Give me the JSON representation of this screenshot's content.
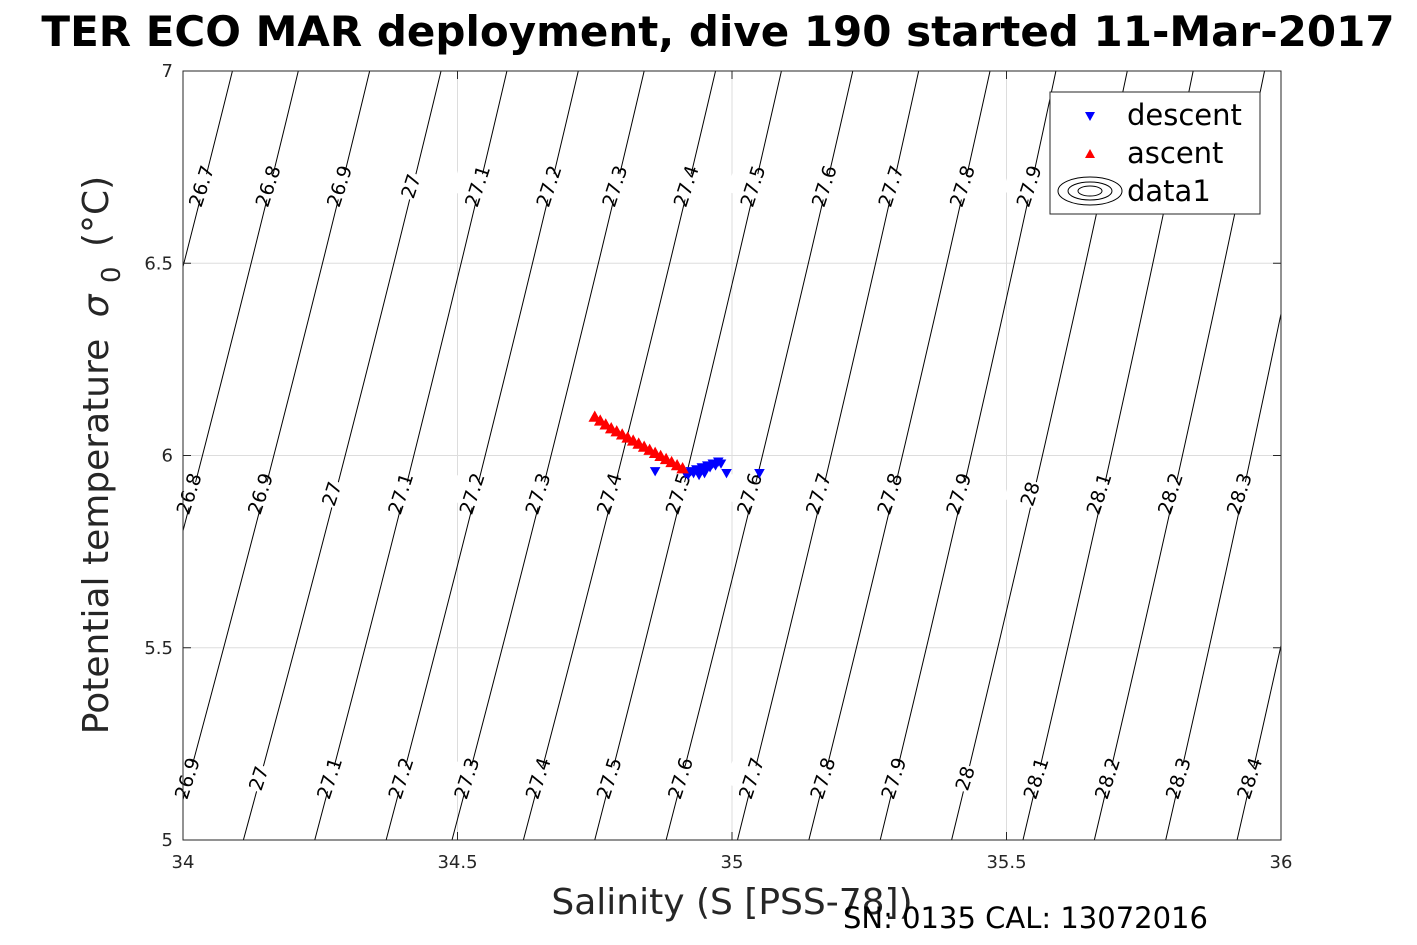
{
  "title": "TER ECO MAR deployment, dive 190 started 11-Mar-2017",
  "footer": "SN: 0135  CAL: 13072016",
  "chart_data": {
    "type": "scatter",
    "xlabel": "Salinity (S [PSS-78])",
    "ylabel": "Potential temperature",
    "ylabel_symbol": "σ",
    "ylabel_subscript": "0",
    "ylabel_unit": "(°C)",
    "xlim": [
      34,
      36
    ],
    "ylim": [
      5,
      7
    ],
    "xticks": [
      34,
      34.5,
      35,
      35.5,
      36
    ],
    "xtick_labels": [
      "34",
      "34.5",
      "35",
      "35.5",
      "36"
    ],
    "yticks": [
      5,
      5.5,
      6,
      6.5,
      7
    ],
    "ytick_labels": [
      "5",
      "5.5",
      "6",
      "6.5",
      "7"
    ],
    "grid": true,
    "legend_position": "top-right",
    "colors": {
      "descent": "#0000ff",
      "ascent": "#ff0000",
      "contour": "#000000",
      "grid": "#dddddd"
    },
    "series": [
      {
        "name": "descent",
        "marker": "triangle-down",
        "color": "#0000ff",
        "points": [
          [
            34.86,
            5.96
          ],
          [
            34.915,
            5.955
          ],
          [
            34.92,
            5.95
          ],
          [
            34.925,
            5.96
          ],
          [
            34.93,
            5.955
          ],
          [
            34.935,
            5.965
          ],
          [
            34.94,
            5.96
          ],
          [
            34.945,
            5.97
          ],
          [
            34.95,
            5.965
          ],
          [
            34.955,
            5.975
          ],
          [
            34.96,
            5.97
          ],
          [
            34.965,
            5.98
          ],
          [
            34.97,
            5.975
          ],
          [
            34.975,
            5.985
          ],
          [
            34.98,
            5.98
          ],
          [
            34.95,
            5.955
          ],
          [
            34.94,
            5.95
          ],
          [
            34.99,
            5.955
          ],
          [
            35.05,
            5.955
          ]
        ]
      },
      {
        "name": "ascent",
        "marker": "triangle-up",
        "color": "#ff0000",
        "points": [
          [
            34.75,
            6.1
          ],
          [
            34.76,
            6.09
          ],
          [
            34.77,
            6.08
          ],
          [
            34.78,
            6.07
          ],
          [
            34.79,
            6.062
          ],
          [
            34.8,
            6.054
          ],
          [
            34.81,
            6.046
          ],
          [
            34.82,
            6.038
          ],
          [
            34.83,
            6.03
          ],
          [
            34.84,
            6.022
          ],
          [
            34.85,
            6.014
          ],
          [
            34.86,
            6.006
          ],
          [
            34.87,
            5.998
          ],
          [
            34.88,
            5.99
          ],
          [
            34.89,
            5.982
          ],
          [
            34.9,
            5.974
          ],
          [
            34.91,
            5.966
          ]
        ]
      },
      {
        "name": "data1",
        "marker": "contour",
        "color": "#000000"
      }
    ],
    "density_contours": [
      {
        "label": "26.7",
        "x_bottom": 33.72,
        "x_top": 34.09
      },
      {
        "label": "26.8",
        "x_bottom": 33.85,
        "x_top": 34.21
      },
      {
        "label": "26.9",
        "x_bottom": 33.98,
        "x_top": 34.34
      },
      {
        "label": "27",
        "x_bottom": 34.11,
        "x_top": 34.47
      },
      {
        "label": "27.1",
        "x_bottom": 34.24,
        "x_top": 34.59
      },
      {
        "label": "27.2",
        "x_bottom": 34.37,
        "x_top": 34.72
      },
      {
        "label": "27.3",
        "x_bottom": 34.49,
        "x_top": 34.84
      },
      {
        "label": "27.4",
        "x_bottom": 34.62,
        "x_top": 34.97
      },
      {
        "label": "27.5",
        "x_bottom": 34.75,
        "x_top": 35.09
      },
      {
        "label": "27.6",
        "x_bottom": 34.88,
        "x_top": 35.22
      },
      {
        "label": "27.7",
        "x_bottom": 35.01,
        "x_top": 35.34
      },
      {
        "label": "27.8",
        "x_bottom": 35.14,
        "x_top": 35.47
      },
      {
        "label": "27.9",
        "x_bottom": 35.27,
        "x_top": 35.59
      },
      {
        "label": "28",
        "x_bottom": 35.4,
        "x_top": 35.72
      },
      {
        "label": "28.1",
        "x_bottom": 35.53,
        "x_top": 35.84
      },
      {
        "label": "28.2",
        "x_bottom": 35.66,
        "x_top": 35.97
      },
      {
        "label": "28.3",
        "x_bottom": 35.79,
        "x_top": 36.09
      },
      {
        "label": "28.4",
        "x_bottom": 35.92,
        "x_top": 36.22
      }
    ],
    "contour_label_rows": [
      {
        "y": 6.7,
        "labels": [
          "26.7",
          "26.8",
          "26.9",
          "27",
          "27.1",
          "27.2",
          "27.3",
          "27.4",
          "27.5",
          "27.6",
          "27.7",
          "27.8",
          "27.9"
        ]
      },
      {
        "y": 5.9,
        "labels": [
          "26.8",
          "26.9",
          "27",
          "27.1",
          "27.2",
          "27.3",
          "27.4",
          "27.5",
          "27.6",
          "27.7",
          "27.8",
          "27.9",
          "28",
          "28.1",
          "28.2",
          "28.3"
        ]
      },
      {
        "y": 5.16,
        "labels": [
          "26.9",
          "27",
          "27.1",
          "27.2",
          "27.3",
          "27.4",
          "27.5",
          "27.6",
          "27.7",
          "27.8",
          "27.9",
          "28",
          "28.1",
          "28.2",
          "28.3",
          "28.4"
        ]
      }
    ]
  }
}
